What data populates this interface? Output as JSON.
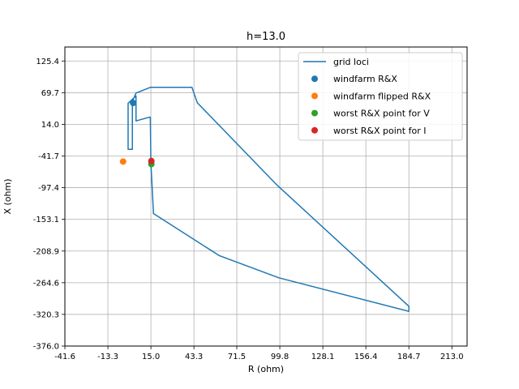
{
  "chart_data": {
    "type": "line",
    "title": "h=13.0",
    "xlabel": "R (ohm)",
    "ylabel": "X (ohm)",
    "xlim": [
      -41.6,
      223.0
    ],
    "ylim": [
      -376.0,
      150.0
    ],
    "xticks": [
      "-41.6",
      "-13.3",
      "15.0",
      "43.3",
      "71.5",
      "99.8",
      "128.1",
      "156.4",
      "184.7",
      "213.0"
    ],
    "yticks": [
      "-376.0",
      "-320.3",
      "-264.6",
      "-208.9",
      "-153.1",
      "-97.4",
      "-41.7",
      "14.0",
      "69.7",
      "125.4"
    ],
    "grid": true,
    "legend_position": "top-right",
    "series": [
      {
        "name": "grid loci",
        "kind": "line",
        "color": "#1f77b4",
        "points": [
          [
            14.6,
            27.0
          ],
          [
            5.2,
            20.0
          ],
          [
            5.2,
            64.0
          ],
          [
            0.0,
            51.0
          ],
          [
            0.0,
            -30.0
          ],
          [
            2.8,
            -30.0
          ],
          [
            2.8,
            54.0
          ],
          [
            5.2,
            69.0
          ],
          [
            14.6,
            79.0
          ],
          [
            42.0,
            79.0
          ],
          [
            45.5,
            52.0
          ],
          [
            98.0,
            -93.0
          ],
          [
            184.7,
            -306.0
          ],
          [
            184.7,
            -315.0
          ],
          [
            99.2,
            -256.0
          ],
          [
            60.0,
            -217.0
          ],
          [
            16.7,
            -143.0
          ],
          [
            15.0,
            -55.0
          ],
          [
            14.6,
            27.0
          ]
        ]
      },
      {
        "name": "windfarm R&X",
        "kind": "scatter",
        "color": "#1f77b4",
        "points": [
          [
            3.3,
            51.5
          ]
        ]
      },
      {
        "name": "windfarm flipped R&X",
        "kind": "scatter",
        "color": "#ff7f0e",
        "points": [
          [
            -3.3,
            -51.5
          ]
        ]
      },
      {
        "name": "worst R&X point for V",
        "kind": "scatter",
        "color": "#2ca02c",
        "points": [
          [
            15.3,
            -56.0
          ]
        ]
      },
      {
        "name": "worst R&X point for I",
        "kind": "scatter",
        "color": "#d62728",
        "points": [
          [
            15.3,
            -50.5
          ]
        ]
      }
    ]
  }
}
